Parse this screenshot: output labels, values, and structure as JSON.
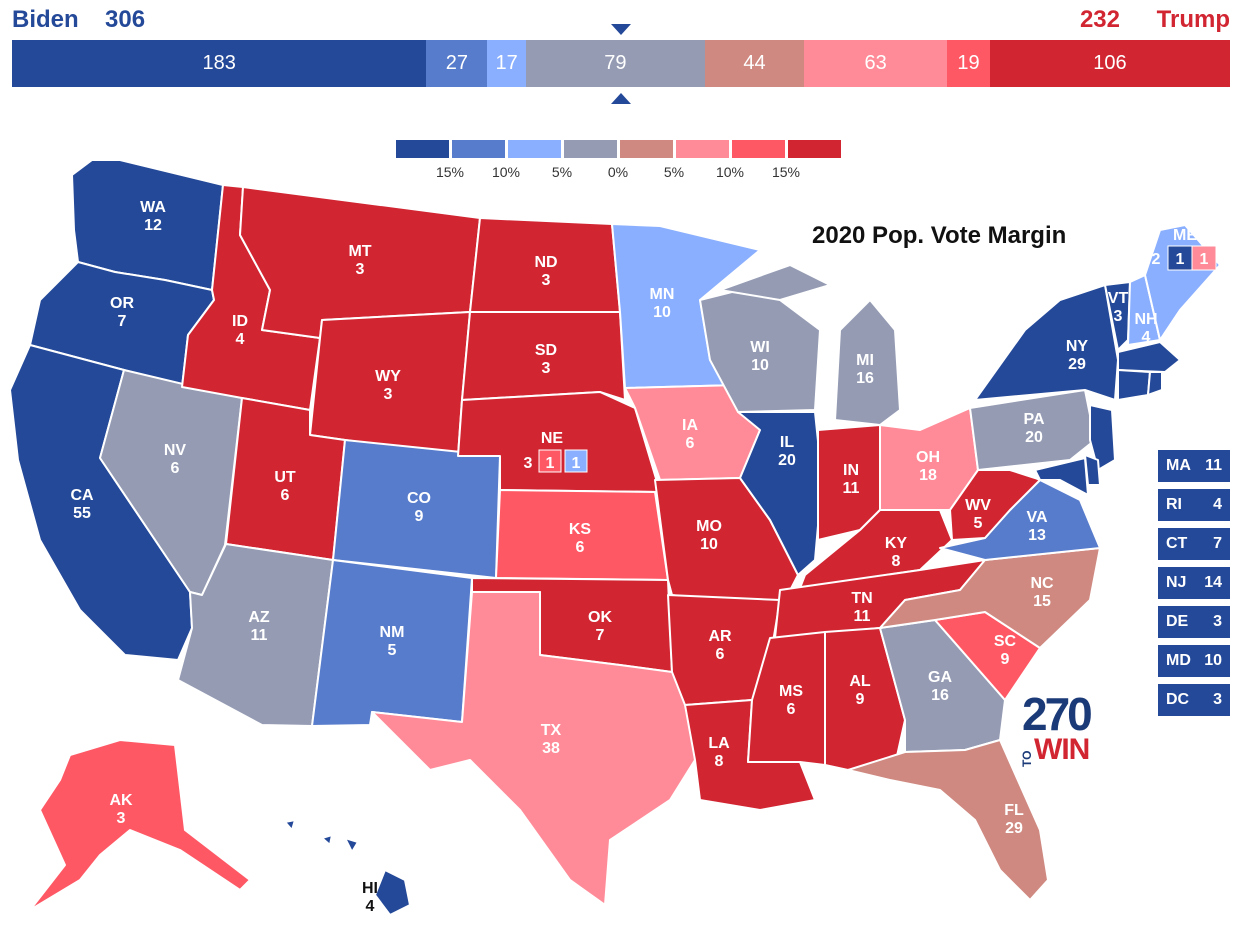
{
  "header": {
    "biden_name": "Biden",
    "biden_ev": "306",
    "trump_ev": "232",
    "trump_name": "Trump"
  },
  "tally": [
    {
      "value": "183",
      "color": "#244999",
      "ev": 183
    },
    {
      "value": "27",
      "color": "#577ccc",
      "ev": 27
    },
    {
      "value": "17",
      "color": "#8aafff",
      "ev": 17
    },
    {
      "value": "79",
      "color": "#949bb3",
      "ev": 79
    },
    {
      "value": "44",
      "color": "#cf8980",
      "ev": 44
    },
    {
      "value": "63",
      "color": "#ff8b98",
      "ev": 63
    },
    {
      "value": "19",
      "color": "#ff5865",
      "ev": 19
    },
    {
      "value": "106",
      "color": "#d22532",
      "ev": 106
    }
  ],
  "legend": {
    "colors": [
      "#244999",
      "#577ccc",
      "#8aafff",
      "#949bb3",
      "#cf8980",
      "#ff8b98",
      "#ff5865",
      "#d22532"
    ],
    "labels": [
      "15%",
      "10%",
      "5%",
      "0%",
      "5%",
      "10%",
      "15%"
    ]
  },
  "map_title": "2020 Pop. Vote Margin",
  "colors": {
    "safe_d": "#244999",
    "likely_d": "#577ccc",
    "lean_d": "#8aafff",
    "tossup": "#949bb3",
    "tilt_r": "#cf8980",
    "lean_r": "#ff8b98",
    "likely_r": "#ff5865",
    "safe_r": "#d22532"
  },
  "states": [
    {
      "abbr": "WA",
      "ev": "12",
      "color": "#244999"
    },
    {
      "abbr": "OR",
      "ev": "7",
      "color": "#244999"
    },
    {
      "abbr": "CA",
      "ev": "55",
      "color": "#244999"
    },
    {
      "abbr": "NV",
      "ev": "6",
      "color": "#949bb3"
    },
    {
      "abbr": "ID",
      "ev": "4",
      "color": "#d22532"
    },
    {
      "abbr": "MT",
      "ev": "3",
      "color": "#d22532"
    },
    {
      "abbr": "WY",
      "ev": "3",
      "color": "#d22532"
    },
    {
      "abbr": "UT",
      "ev": "6",
      "color": "#d22532"
    },
    {
      "abbr": "AZ",
      "ev": "11",
      "color": "#949bb3"
    },
    {
      "abbr": "CO",
      "ev": "9",
      "color": "#577ccc"
    },
    {
      "abbr": "NM",
      "ev": "5",
      "color": "#577ccc"
    },
    {
      "abbr": "ND",
      "ev": "3",
      "color": "#d22532"
    },
    {
      "abbr": "SD",
      "ev": "3",
      "color": "#d22532"
    },
    {
      "abbr": "NE",
      "ev": "",
      "color": "#d22532"
    },
    {
      "abbr": "KS",
      "ev": "6",
      "color": "#ff5865"
    },
    {
      "abbr": "OK",
      "ev": "7",
      "color": "#d22532"
    },
    {
      "abbr": "TX",
      "ev": "38",
      "color": "#ff8b98"
    },
    {
      "abbr": "MN",
      "ev": "10",
      "color": "#8aafff"
    },
    {
      "abbr": "IA",
      "ev": "6",
      "color": "#ff8b98"
    },
    {
      "abbr": "MO",
      "ev": "10",
      "color": "#d22532"
    },
    {
      "abbr": "AR",
      "ev": "6",
      "color": "#d22532"
    },
    {
      "abbr": "LA",
      "ev": "8",
      "color": "#d22532"
    },
    {
      "abbr": "WI",
      "ev": "10",
      "color": "#949bb3"
    },
    {
      "abbr": "IL",
      "ev": "20",
      "color": "#244999"
    },
    {
      "abbr": "MI",
      "ev": "16",
      "color": "#949bb3"
    },
    {
      "abbr": "IN",
      "ev": "11",
      "color": "#d22532"
    },
    {
      "abbr": "OH",
      "ev": "18",
      "color": "#ff8b98"
    },
    {
      "abbr": "KY",
      "ev": "8",
      "color": "#d22532"
    },
    {
      "abbr": "TN",
      "ev": "11",
      "color": "#d22532"
    },
    {
      "abbr": "MS",
      "ev": "6",
      "color": "#d22532"
    },
    {
      "abbr": "AL",
      "ev": "9",
      "color": "#d22532"
    },
    {
      "abbr": "GA",
      "ev": "16",
      "color": "#949bb3"
    },
    {
      "abbr": "FL",
      "ev": "29",
      "color": "#cf8980"
    },
    {
      "abbr": "SC",
      "ev": "9",
      "color": "#ff5865"
    },
    {
      "abbr": "NC",
      "ev": "15",
      "color": "#cf8980"
    },
    {
      "abbr": "VA",
      "ev": "13",
      "color": "#577ccc"
    },
    {
      "abbr": "WV",
      "ev": "5",
      "color": "#d22532"
    },
    {
      "abbr": "PA",
      "ev": "20",
      "color": "#949bb3"
    },
    {
      "abbr": "NY",
      "ev": "29",
      "color": "#244999"
    },
    {
      "abbr": "VT",
      "ev": "3",
      "color": "#244999"
    },
    {
      "abbr": "NH",
      "ev": "4",
      "color": "#8aafff"
    },
    {
      "abbr": "ME",
      "ev": "",
      "color": "#8aafff"
    },
    {
      "abbr": "AK",
      "ev": "3",
      "color": "#ff5865"
    },
    {
      "abbr": "HI",
      "ev": "4",
      "color": "#244999"
    }
  ],
  "split_votes": {
    "ne": {
      "statewide": "3",
      "d1": "1",
      "d2": "1"
    },
    "me": {
      "statewide": "2",
      "d1": "1",
      "d2": "1"
    }
  },
  "small_states": [
    {
      "abbr": "MA",
      "ev": "11"
    },
    {
      "abbr": "RI",
      "ev": "4"
    },
    {
      "abbr": "CT",
      "ev": "7"
    },
    {
      "abbr": "NJ",
      "ev": "14"
    },
    {
      "abbr": "DE",
      "ev": "3"
    },
    {
      "abbr": "MD",
      "ev": "10"
    },
    {
      "abbr": "DC",
      "ev": "3"
    }
  ],
  "logo": {
    "number": "270",
    "to": "TO",
    "win": "WIN"
  }
}
